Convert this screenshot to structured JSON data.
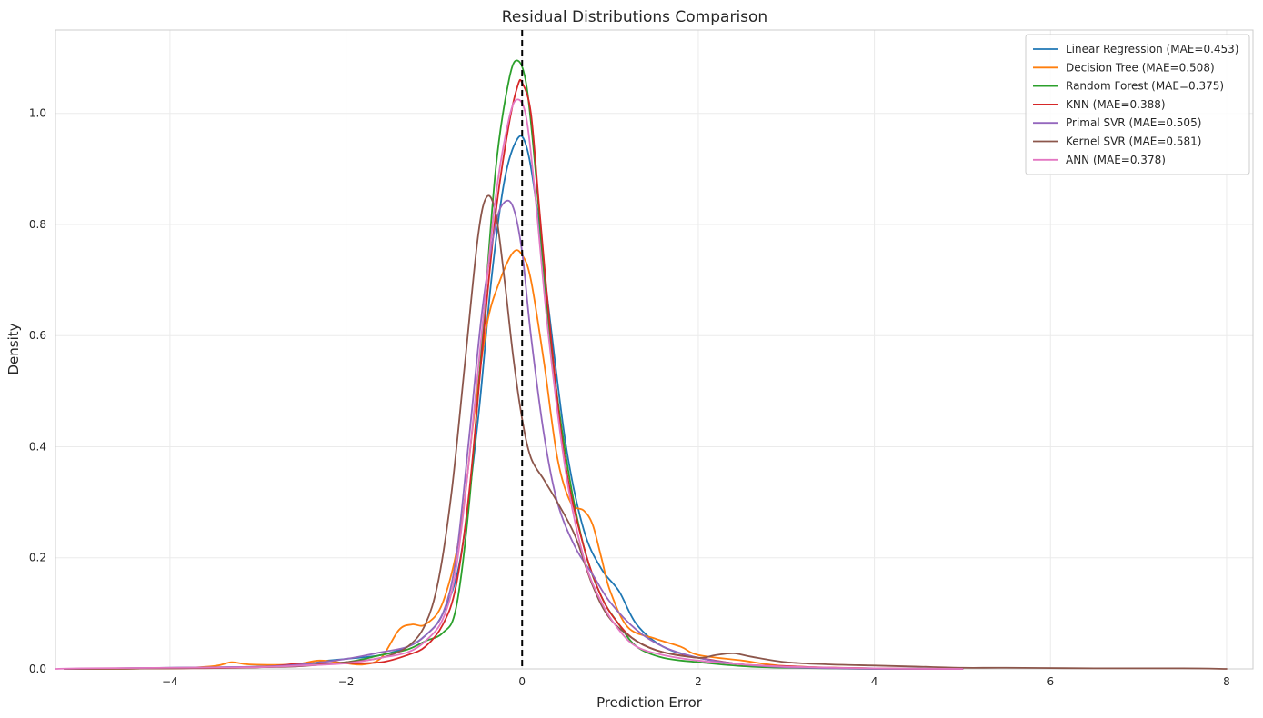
{
  "chart_data": {
    "type": "line",
    "title": "Residual Distributions Comparison",
    "xlabel": "Prediction Error",
    "ylabel": "Density",
    "xlim": [
      -5.3,
      8.3
    ],
    "ylim": [
      0,
      1.15
    ],
    "xticks": [
      -4,
      -2,
      0,
      2,
      4,
      6,
      8
    ],
    "xtick_labels": [
      "−4",
      "−2",
      "0",
      "2",
      "4",
      "6",
      "8"
    ],
    "yticks": [
      0.0,
      0.2,
      0.4,
      0.6,
      0.8,
      1.0
    ],
    "ytick_labels": [
      "0.0",
      "0.2",
      "0.4",
      "0.6",
      "0.8",
      "1.0"
    ],
    "grid": true,
    "legend_position": "top-right",
    "reference_line": {
      "x": 0,
      "style": "dashed",
      "color": "#000000"
    },
    "series": [
      {
        "name": "Linear Regression (MAE=0.453)",
        "color": "#1f77b4",
        "points": [
          [
            -5.2,
            0
          ],
          [
            -4,
            0.002
          ],
          [
            -3,
            0.004
          ],
          [
            -2.5,
            0.008
          ],
          [
            -2.2,
            0.015
          ],
          [
            -2,
            0.018
          ],
          [
            -1.6,
            0.025
          ],
          [
            -1.3,
            0.04
          ],
          [
            -1.1,
            0.06
          ],
          [
            -0.9,
            0.1
          ],
          [
            -0.7,
            0.2
          ],
          [
            -0.5,
            0.45
          ],
          [
            -0.35,
            0.7
          ],
          [
            -0.2,
            0.88
          ],
          [
            -0.05,
            0.955
          ],
          [
            0.05,
            0.94
          ],
          [
            0.15,
            0.85
          ],
          [
            0.3,
            0.65
          ],
          [
            0.5,
            0.4
          ],
          [
            0.7,
            0.25
          ],
          [
            0.9,
            0.18
          ],
          [
            1.1,
            0.14
          ],
          [
            1.3,
            0.08
          ],
          [
            1.6,
            0.04
          ],
          [
            2,
            0.02
          ],
          [
            2.5,
            0.008
          ],
          [
            3,
            0.003
          ],
          [
            4,
            0.001
          ],
          [
            5,
            0
          ]
        ]
      },
      {
        "name": "Decision Tree (MAE=0.508)",
        "color": "#ff7f0e",
        "points": [
          [
            -5.2,
            0
          ],
          [
            -4,
            0.001
          ],
          [
            -3.5,
            0.005
          ],
          [
            -3.3,
            0.012
          ],
          [
            -3.1,
            0.008
          ],
          [
            -2.6,
            0.008
          ],
          [
            -2.3,
            0.015
          ],
          [
            -2,
            0.01
          ],
          [
            -1.8,
            0.008
          ],
          [
            -1.6,
            0.02
          ],
          [
            -1.4,
            0.07
          ],
          [
            -1.25,
            0.08
          ],
          [
            -1.1,
            0.08
          ],
          [
            -0.9,
            0.12
          ],
          [
            -0.7,
            0.25
          ],
          [
            -0.55,
            0.45
          ],
          [
            -0.4,
            0.62
          ],
          [
            -0.25,
            0.7
          ],
          [
            -0.1,
            0.75
          ],
          [
            0,
            0.745
          ],
          [
            0.1,
            0.7
          ],
          [
            0.25,
            0.55
          ],
          [
            0.4,
            0.38
          ],
          [
            0.55,
            0.3
          ],
          [
            0.7,
            0.285
          ],
          [
            0.8,
            0.26
          ],
          [
            0.9,
            0.2
          ],
          [
            1,
            0.14
          ],
          [
            1.2,
            0.075
          ],
          [
            1.5,
            0.055
          ],
          [
            1.8,
            0.04
          ],
          [
            2,
            0.025
          ],
          [
            2.5,
            0.015
          ],
          [
            3,
            0.005
          ],
          [
            4,
            0.001
          ],
          [
            5,
            0
          ]
        ]
      },
      {
        "name": "Random Forest (MAE=0.375)",
        "color": "#2ca02c",
        "points": [
          [
            -5.2,
            0
          ],
          [
            -4,
            0.001
          ],
          [
            -3,
            0.003
          ],
          [
            -2.5,
            0.006
          ],
          [
            -2,
            0.012
          ],
          [
            -1.6,
            0.025
          ],
          [
            -1.3,
            0.035
          ],
          [
            -1.1,
            0.05
          ],
          [
            -0.9,
            0.065
          ],
          [
            -0.75,
            0.11
          ],
          [
            -0.6,
            0.3
          ],
          [
            -0.45,
            0.6
          ],
          [
            -0.3,
            0.9
          ],
          [
            -0.15,
            1.06
          ],
          [
            -0.05,
            1.095
          ],
          [
            0.05,
            1.05
          ],
          [
            0.15,
            0.9
          ],
          [
            0.3,
            0.62
          ],
          [
            0.5,
            0.38
          ],
          [
            0.7,
            0.22
          ],
          [
            0.9,
            0.13
          ],
          [
            1.1,
            0.08
          ],
          [
            1.3,
            0.04
          ],
          [
            1.6,
            0.02
          ],
          [
            2,
            0.012
          ],
          [
            2.5,
            0.005
          ],
          [
            3,
            0.002
          ],
          [
            4,
            0
          ],
          [
            5,
            0
          ]
        ]
      },
      {
        "name": "KNN (MAE=0.388)",
        "color": "#d62728",
        "points": [
          [
            -5.2,
            0
          ],
          [
            -4,
            0.001
          ],
          [
            -3,
            0.003
          ],
          [
            -2.5,
            0.01
          ],
          [
            -2,
            0.01
          ],
          [
            -1.6,
            0.012
          ],
          [
            -1.3,
            0.025
          ],
          [
            -1.1,
            0.04
          ],
          [
            -0.9,
            0.08
          ],
          [
            -0.75,
            0.15
          ],
          [
            -0.6,
            0.32
          ],
          [
            -0.45,
            0.58
          ],
          [
            -0.3,
            0.82
          ],
          [
            -0.15,
            0.98
          ],
          [
            -0.05,
            1.05
          ],
          [
            0,
            1.055
          ],
          [
            0.1,
            1.0
          ],
          [
            0.2,
            0.82
          ],
          [
            0.35,
            0.56
          ],
          [
            0.5,
            0.36
          ],
          [
            0.7,
            0.22
          ],
          [
            0.9,
            0.13
          ],
          [
            1.1,
            0.08
          ],
          [
            1.3,
            0.05
          ],
          [
            1.6,
            0.03
          ],
          [
            2,
            0.02
          ],
          [
            2.5,
            0.008
          ],
          [
            3,
            0.005
          ],
          [
            3.5,
            0.002
          ],
          [
            4.5,
            0
          ],
          [
            5,
            0
          ]
        ]
      },
      {
        "name": "Primal SVR (MAE=0.505)",
        "color": "#9467bd",
        "points": [
          [
            -5.2,
            0
          ],
          [
            -4,
            0.002
          ],
          [
            -3,
            0.004
          ],
          [
            -2.5,
            0.008
          ],
          [
            -2,
            0.018
          ],
          [
            -1.6,
            0.03
          ],
          [
            -1.3,
            0.04
          ],
          [
            -1.1,
            0.06
          ],
          [
            -0.9,
            0.1
          ],
          [
            -0.75,
            0.2
          ],
          [
            -0.6,
            0.42
          ],
          [
            -0.45,
            0.65
          ],
          [
            -0.3,
            0.8
          ],
          [
            -0.2,
            0.84
          ],
          [
            -0.1,
            0.83
          ],
          [
            0,
            0.75
          ],
          [
            0.1,
            0.6
          ],
          [
            0.25,
            0.42
          ],
          [
            0.4,
            0.3
          ],
          [
            0.6,
            0.22
          ],
          [
            0.8,
            0.17
          ],
          [
            1,
            0.12
          ],
          [
            1.3,
            0.07
          ],
          [
            1.6,
            0.04
          ],
          [
            2,
            0.02
          ],
          [
            2.5,
            0.008
          ],
          [
            3,
            0.003
          ],
          [
            4,
            0
          ],
          [
            5,
            0
          ]
        ]
      },
      {
        "name": "Kernel SVR (MAE=0.581)",
        "color": "#8c564b",
        "points": [
          [
            -5.2,
            0
          ],
          [
            -4,
            0.001
          ],
          [
            -3,
            0.003
          ],
          [
            -2.5,
            0.005
          ],
          [
            -2,
            0.012
          ],
          [
            -1.6,
            0.02
          ],
          [
            -1.3,
            0.04
          ],
          [
            -1.1,
            0.08
          ],
          [
            -0.95,
            0.16
          ],
          [
            -0.8,
            0.32
          ],
          [
            -0.65,
            0.55
          ],
          [
            -0.5,
            0.78
          ],
          [
            -0.4,
            0.85
          ],
          [
            -0.3,
            0.82
          ],
          [
            -0.2,
            0.7
          ],
          [
            -0.1,
            0.56
          ],
          [
            0,
            0.45
          ],
          [
            0.1,
            0.38
          ],
          [
            0.25,
            0.34
          ],
          [
            0.4,
            0.3
          ],
          [
            0.6,
            0.24
          ],
          [
            0.8,
            0.15
          ],
          [
            1,
            0.09
          ],
          [
            1.3,
            0.05
          ],
          [
            1.6,
            0.03
          ],
          [
            2,
            0.02
          ],
          [
            2.2,
            0.025
          ],
          [
            2.4,
            0.028
          ],
          [
            2.6,
            0.022
          ],
          [
            3,
            0.012
          ],
          [
            3.5,
            0.008
          ],
          [
            4,
            0.006
          ],
          [
            4.5,
            0.004
          ],
          [
            5,
            0.002
          ],
          [
            5.5,
            0.002
          ],
          [
            6.5,
            0.001
          ],
          [
            7.5,
            0.001
          ],
          [
            8,
            0
          ]
        ]
      },
      {
        "name": "ANN (MAE=0.378)",
        "color": "#e377c2",
        "points": [
          [
            -5.3,
            0
          ],
          [
            -5,
            0.001
          ],
          [
            -4,
            0.002
          ],
          [
            -3,
            0.003
          ],
          [
            -2.5,
            0.006
          ],
          [
            -2,
            0.01
          ],
          [
            -1.6,
            0.02
          ],
          [
            -1.3,
            0.03
          ],
          [
            -1.1,
            0.05
          ],
          [
            -0.9,
            0.09
          ],
          [
            -0.75,
            0.18
          ],
          [
            -0.6,
            0.38
          ],
          [
            -0.45,
            0.62
          ],
          [
            -0.3,
            0.85
          ],
          [
            -0.15,
            0.99
          ],
          [
            -0.05,
            1.025
          ],
          [
            0.05,
            0.99
          ],
          [
            0.15,
            0.85
          ],
          [
            0.3,
            0.6
          ],
          [
            0.5,
            0.35
          ],
          [
            0.7,
            0.2
          ],
          [
            0.9,
            0.12
          ],
          [
            1.1,
            0.07
          ],
          [
            1.3,
            0.04
          ],
          [
            1.6,
            0.025
          ],
          [
            2,
            0.015
          ],
          [
            2.5,
            0.008
          ],
          [
            3,
            0.004
          ],
          [
            4,
            0.001
          ],
          [
            5,
            0
          ]
        ]
      }
    ]
  }
}
